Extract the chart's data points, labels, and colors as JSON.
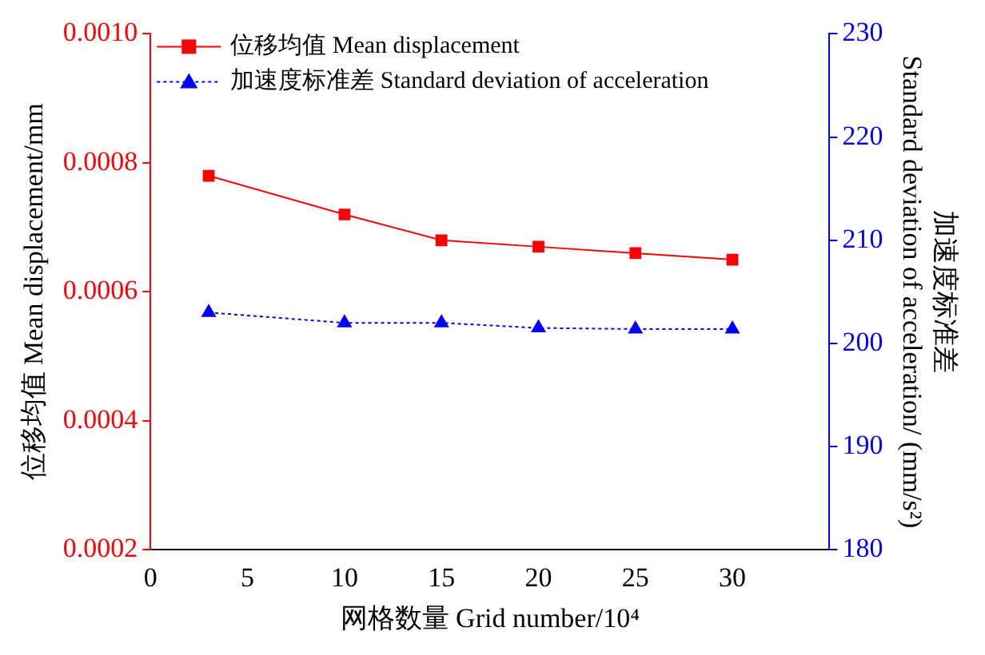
{
  "chart_data": {
    "type": "line",
    "xlabel": "网格数量 Grid number/10⁴",
    "ylabel": "位移均值 Mean displacement/mm",
    "y2label": "加速度标准差\nStandard deviation of acceleration/ (mm/s²)",
    "x": [
      3,
      10,
      15,
      20,
      25,
      30
    ],
    "xlim": [
      0,
      35
    ],
    "xticks": [
      0,
      5,
      10,
      15,
      20,
      25,
      30
    ],
    "ylim": [
      0.0002,
      0.001
    ],
    "yticks": [
      {
        "value": 0.0002,
        "label": "0.0002"
      },
      {
        "value": 0.0004,
        "label": "0.0004"
      },
      {
        "value": 0.0006,
        "label": "0.0006"
      },
      {
        "value": 0.0008,
        "label": "0.0008"
      },
      {
        "value": 0.001,
        "label": "0.0010"
      }
    ],
    "y2lim": [
      180,
      230
    ],
    "y2ticks": [
      180,
      190,
      200,
      210,
      220,
      230
    ],
    "legend": "top left",
    "grid": false,
    "series": [
      {
        "name": "位移均值 Mean displacement",
        "color": "#ff0000",
        "marker": "square",
        "line_style": "solid",
        "values": [
          0.00078,
          0.00072,
          0.00068,
          0.00067,
          0.00066,
          0.00065
        ]
      },
      {
        "name": "加速度标准差 Standard deviation of acceleration",
        "color": "#0000ff",
        "marker": "triangle",
        "line_style": "dotted",
        "axis": "y2",
        "values": [
          203,
          202,
          202,
          201.5,
          201.4,
          201.4
        ]
      }
    ]
  }
}
